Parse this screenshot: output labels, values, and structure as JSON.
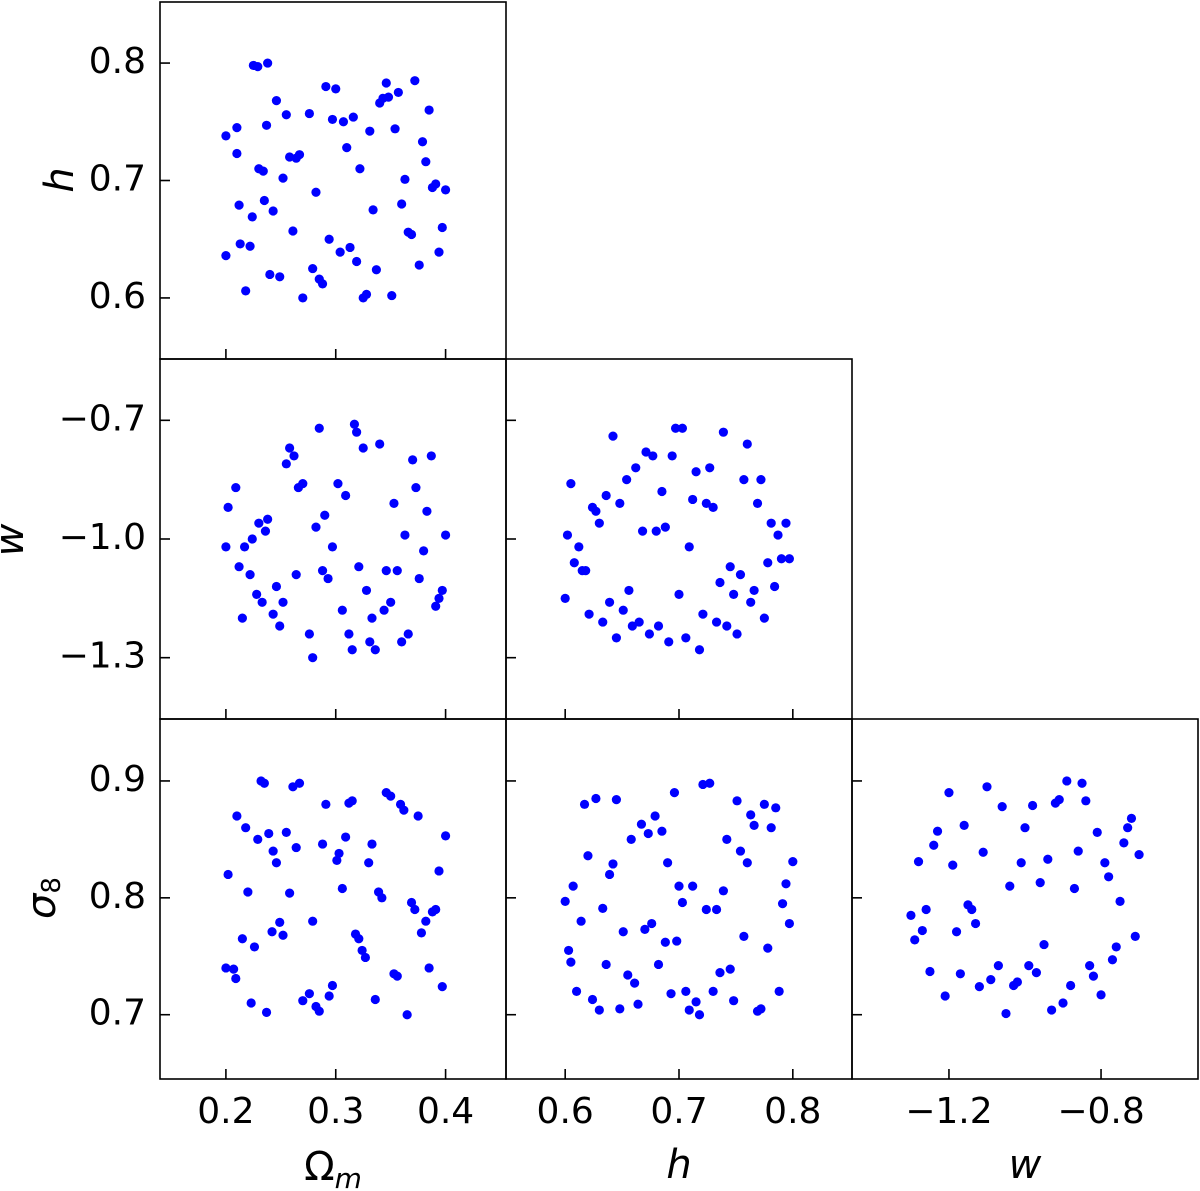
{
  "chart_data": [
    {
      "type": "scatter",
      "panel": "h-vs-omega_m",
      "ylabel": "h",
      "xlim": [
        0.14,
        0.455
      ],
      "ylim": [
        0.548,
        0.852
      ],
      "xticks": [
        0.2,
        0.3,
        0.4
      ],
      "yticks": [
        0.6,
        0.7,
        0.8
      ],
      "ytick_labels": [
        "0.6",
        "0.7",
        "0.8"
      ],
      "marker_color": "#0000ff",
      "x": [
        0.2,
        0.2,
        0.21,
        0.21,
        0.212,
        0.213,
        0.218,
        0.222,
        0.224,
        0.225,
        0.229,
        0.23,
        0.234,
        0.235,
        0.237,
        0.238,
        0.24,
        0.243,
        0.246,
        0.249,
        0.252,
        0.255,
        0.258,
        0.261,
        0.264,
        0.267,
        0.27,
        0.276,
        0.279,
        0.282,
        0.285,
        0.288,
        0.291,
        0.294,
        0.297,
        0.3,
        0.304,
        0.307,
        0.31,
        0.313,
        0.316,
        0.319,
        0.322,
        0.325,
        0.328,
        0.331,
        0.334,
        0.337,
        0.34,
        0.343,
        0.346,
        0.348,
        0.351,
        0.354,
        0.357,
        0.36,
        0.363,
        0.366,
        0.369,
        0.372,
        0.376,
        0.379,
        0.382,
        0.385,
        0.388,
        0.391,
        0.394,
        0.397,
        0.4
      ],
      "y": [
        0.738,
        0.636,
        0.745,
        0.723,
        0.679,
        0.646,
        0.606,
        0.644,
        0.669,
        0.798,
        0.797,
        0.71,
        0.708,
        0.683,
        0.747,
        0.8,
        0.62,
        0.674,
        0.768,
        0.618,
        0.702,
        0.756,
        0.72,
        0.657,
        0.719,
        0.722,
        0.6,
        0.757,
        0.625,
        0.69,
        0.616,
        0.612,
        0.78,
        0.65,
        0.752,
        0.778,
        0.639,
        0.75,
        0.728,
        0.643,
        0.754,
        0.631,
        0.71,
        0.6,
        0.603,
        0.742,
        0.675,
        0.624,
        0.766,
        0.77,
        0.783,
        0.771,
        0.602,
        0.744,
        0.775,
        0.68,
        0.701,
        0.656,
        0.654,
        0.785,
        0.628,
        0.733,
        0.716,
        0.76,
        0.694,
        0.697,
        0.639,
        0.66,
        0.692
      ]
    },
    {
      "type": "scatter",
      "panel": "w-vs-omega_m",
      "ylabel": "w",
      "xlim": [
        0.14,
        0.455
      ],
      "ylim": [
        -1.455,
        -0.545
      ],
      "xticks": [
        0.2,
        0.3,
        0.4
      ],
      "yticks": [
        -1.3,
        -1.0,
        -0.7
      ],
      "ytick_labels": [
        "−1.3",
        "−1.0",
        "−0.7"
      ],
      "marker_color": "#0000ff",
      "x": [
        0.2,
        0.202,
        0.209,
        0.212,
        0.215,
        0.217,
        0.222,
        0.224,
        0.228,
        0.23,
        0.233,
        0.236,
        0.238,
        0.243,
        0.246,
        0.249,
        0.252,
        0.255,
        0.258,
        0.262,
        0.264,
        0.266,
        0.27,
        0.276,
        0.279,
        0.282,
        0.285,
        0.288,
        0.29,
        0.293,
        0.297,
        0.302,
        0.306,
        0.309,
        0.312,
        0.315,
        0.317,
        0.319,
        0.321,
        0.325,
        0.328,
        0.331,
        0.333,
        0.336,
        0.34,
        0.344,
        0.346,
        0.35,
        0.353,
        0.356,
        0.36,
        0.363,
        0.366,
        0.37,
        0.373,
        0.376,
        0.38,
        0.383,
        0.387,
        0.391,
        0.394,
        0.397,
        0.4
      ],
      "y": [
        -1.02,
        -0.92,
        -0.87,
        -1.07,
        -1.2,
        -1.02,
        -1.09,
        -1.0,
        -1.14,
        -0.96,
        -1.16,
        -0.98,
        -0.95,
        -1.19,
        -1.12,
        -1.22,
        -1.16,
        -0.81,
        -0.77,
        -0.79,
        -1.09,
        -0.87,
        -0.86,
        -1.24,
        -1.3,
        -0.97,
        -0.72,
        -1.08,
        -0.94,
        -1.1,
        -1.02,
        -0.86,
        -1.18,
        -0.89,
        -1.24,
        -1.28,
        -0.71,
        -0.73,
        -1.07,
        -0.77,
        -1.13,
        -1.26,
        -1.2,
        -1.28,
        -0.76,
        -1.18,
        -1.08,
        -1.16,
        -0.91,
        -1.08,
        -1.26,
        -0.99,
        -1.24,
        -0.8,
        -0.87,
        -1.1,
        -1.03,
        -0.93,
        -0.79,
        -1.17,
        -1.15,
        -1.13,
        -0.99
      ]
    },
    {
      "type": "scatter",
      "panel": "w-vs-h",
      "xlim": [
        0.548,
        0.852
      ],
      "ylim": [
        -1.455,
        -0.545
      ],
      "xticks": [
        0.6,
        0.7,
        0.8
      ],
      "yticks": [
        -1.3,
        -1.0,
        -0.7
      ],
      "marker_color": "#0000ff",
      "x": [
        0.6,
        0.602,
        0.605,
        0.608,
        0.612,
        0.615,
        0.618,
        0.621,
        0.624,
        0.627,
        0.63,
        0.633,
        0.636,
        0.639,
        0.642,
        0.645,
        0.648,
        0.651,
        0.654,
        0.656,
        0.659,
        0.662,
        0.665,
        0.668,
        0.671,
        0.674,
        0.677,
        0.68,
        0.682,
        0.685,
        0.688,
        0.691,
        0.694,
        0.697,
        0.7,
        0.703,
        0.706,
        0.709,
        0.712,
        0.715,
        0.718,
        0.721,
        0.724,
        0.727,
        0.73,
        0.733,
        0.736,
        0.739,
        0.742,
        0.745,
        0.748,
        0.751,
        0.754,
        0.757,
        0.76,
        0.763,
        0.766,
        0.769,
        0.772,
        0.775,
        0.778,
        0.781,
        0.784,
        0.787,
        0.79,
        0.794,
        0.797
      ],
      "y": [
        -1.15,
        -0.99,
        -0.86,
        -1.06,
        -1.02,
        -1.08,
        -1.08,
        -1.19,
        -0.92,
        -0.93,
        -0.96,
        -1.21,
        -0.89,
        -1.16,
        -0.74,
        -1.25,
        -0.91,
        -1.18,
        -0.85,
        -1.13,
        -1.22,
        -0.82,
        -1.21,
        -0.98,
        -0.78,
        -1.24,
        -0.79,
        -0.98,
        -1.22,
        -0.88,
        -0.97,
        -1.26,
        -0.79,
        -0.72,
        -1.14,
        -0.72,
        -1.25,
        -1.02,
        -0.9,
        -0.83,
        -1.28,
        -1.19,
        -0.91,
        -0.82,
        -0.92,
        -1.21,
        -1.11,
        -0.73,
        -1.22,
        -1.07,
        -1.14,
        -1.24,
        -1.09,
        -0.85,
        -0.76,
        -1.16,
        -1.13,
        -0.91,
        -0.85,
        -1.2,
        -1.06,
        -0.96,
        -1.12,
        -0.99,
        -1.05,
        -0.96,
        -1.05
      ]
    },
    {
      "type": "scatter",
      "panel": "sigma8-vs-omega_m",
      "xlabel": "Ωm",
      "ylabel": "σ8",
      "xlim": [
        0.14,
        0.455
      ],
      "ylim": [
        0.645,
        0.953
      ],
      "xticks": [
        0.2,
        0.3,
        0.4
      ],
      "yticks": [
        0.7,
        0.8,
        0.9
      ],
      "xtick_labels": [
        "0.2",
        "0.3",
        "0.4"
      ],
      "ytick_labels": [
        "0.7",
        "0.8",
        "0.9"
      ],
      "marker_color": "#0000ff",
      "x": [
        0.2,
        0.202,
        0.207,
        0.209,
        0.21,
        0.215,
        0.218,
        0.22,
        0.223,
        0.226,
        0.229,
        0.232,
        0.235,
        0.237,
        0.239,
        0.242,
        0.243,
        0.246,
        0.249,
        0.252,
        0.255,
        0.258,
        0.261,
        0.264,
        0.267,
        0.27,
        0.276,
        0.279,
        0.282,
        0.285,
        0.288,
        0.291,
        0.294,
        0.297,
        0.301,
        0.303,
        0.306,
        0.309,
        0.312,
        0.315,
        0.318,
        0.321,
        0.324,
        0.327,
        0.33,
        0.333,
        0.336,
        0.339,
        0.342,
        0.346,
        0.35,
        0.353,
        0.356,
        0.359,
        0.362,
        0.365,
        0.369,
        0.372,
        0.375,
        0.378,
        0.382,
        0.385,
        0.388,
        0.391,
        0.394,
        0.397,
        0.4
      ],
      "y": [
        0.74,
        0.82,
        0.739,
        0.731,
        0.87,
        0.765,
        0.86,
        0.805,
        0.71,
        0.758,
        0.85,
        0.9,
        0.898,
        0.702,
        0.855,
        0.771,
        0.84,
        0.83,
        0.779,
        0.768,
        0.856,
        0.804,
        0.895,
        0.843,
        0.898,
        0.712,
        0.718,
        0.78,
        0.707,
        0.703,
        0.846,
        0.88,
        0.716,
        0.725,
        0.832,
        0.838,
        0.808,
        0.852,
        0.881,
        0.883,
        0.769,
        0.765,
        0.755,
        0.749,
        0.83,
        0.846,
        0.713,
        0.805,
        0.8,
        0.89,
        0.887,
        0.735,
        0.733,
        0.88,
        0.875,
        0.7,
        0.796,
        0.79,
        0.87,
        0.77,
        0.78,
        0.74,
        0.788,
        0.79,
        0.823,
        0.724,
        0.853
      ]
    },
    {
      "type": "scatter",
      "panel": "sigma8-vs-h",
      "xlabel": "h",
      "xlim": [
        0.548,
        0.852
      ],
      "ylim": [
        0.645,
        0.953
      ],
      "xticks": [
        0.6,
        0.7,
        0.8
      ],
      "yticks": [
        0.7,
        0.8,
        0.9
      ],
      "xtick_labels": [
        "0.6",
        "0.7",
        "0.8"
      ],
      "marker_color": "#0000ff",
      "x": [
        0.6,
        0.603,
        0.605,
        0.607,
        0.61,
        0.614,
        0.617,
        0.62,
        0.624,
        0.627,
        0.63,
        0.633,
        0.636,
        0.639,
        0.642,
        0.645,
        0.648,
        0.651,
        0.655,
        0.658,
        0.661,
        0.664,
        0.667,
        0.67,
        0.673,
        0.676,
        0.679,
        0.682,
        0.685,
        0.688,
        0.69,
        0.693,
        0.696,
        0.698,
        0.7,
        0.703,
        0.706,
        0.709,
        0.712,
        0.715,
        0.718,
        0.721,
        0.724,
        0.727,
        0.73,
        0.733,
        0.736,
        0.739,
        0.742,
        0.745,
        0.748,
        0.751,
        0.754,
        0.757,
        0.76,
        0.763,
        0.766,
        0.769,
        0.772,
        0.775,
        0.778,
        0.781,
        0.785,
        0.788,
        0.791,
        0.794,
        0.797,
        0.8
      ],
      "y": [
        0.797,
        0.755,
        0.745,
        0.81,
        0.72,
        0.78,
        0.88,
        0.836,
        0.713,
        0.885,
        0.704,
        0.791,
        0.743,
        0.82,
        0.829,
        0.884,
        0.705,
        0.771,
        0.734,
        0.85,
        0.727,
        0.709,
        0.863,
        0.773,
        0.855,
        0.778,
        0.87,
        0.743,
        0.857,
        0.762,
        0.83,
        0.718,
        0.89,
        0.763,
        0.81,
        0.796,
        0.72,
        0.704,
        0.81,
        0.711,
        0.7,
        0.897,
        0.79,
        0.898,
        0.72,
        0.79,
        0.736,
        0.806,
        0.85,
        0.739,
        0.712,
        0.883,
        0.84,
        0.767,
        0.83,
        0.871,
        0.862,
        0.703,
        0.705,
        0.88,
        0.757,
        0.86,
        0.877,
        0.72,
        0.795,
        0.812,
        0.778,
        0.831
      ]
    },
    {
      "type": "scatter",
      "panel": "sigma8-vs-w",
      "xlabel": "w",
      "xlim": [
        -1.455,
        -0.545
      ],
      "ylim": [
        0.645,
        0.953
      ],
      "xticks": [
        -1.2,
        -0.8
      ],
      "yticks": [
        0.7,
        0.8,
        0.9
      ],
      "xtick_labels": [
        "−1.2",
        "−0.8"
      ],
      "marker_color": "#0000ff",
      "x": [
        -1.3,
        -1.29,
        -1.28,
        -1.27,
        -1.26,
        -1.25,
        -1.24,
        -1.23,
        -1.21,
        -1.2,
        -1.19,
        -1.18,
        -1.17,
        -1.16,
        -1.15,
        -1.14,
        -1.13,
        -1.12,
        -1.11,
        -1.1,
        -1.09,
        -1.07,
        -1.06,
        -1.05,
        -1.04,
        -1.03,
        -1.02,
        -1.01,
        -1.0,
        -0.99,
        -0.98,
        -0.97,
        -0.96,
        -0.95,
        -0.94,
        -0.93,
        -0.92,
        -0.91,
        -0.9,
        -0.89,
        -0.88,
        -0.87,
        -0.86,
        -0.85,
        -0.84,
        -0.83,
        -0.82,
        -0.81,
        -0.8,
        -0.79,
        -0.78,
        -0.77,
        -0.76,
        -0.75,
        -0.74,
        -0.73,
        -0.72,
        -0.71,
        -0.7
      ],
      "y": [
        0.785,
        0.764,
        0.831,
        0.772,
        0.79,
        0.737,
        0.845,
        0.857,
        0.716,
        0.89,
        0.828,
        0.771,
        0.735,
        0.862,
        0.794,
        0.79,
        0.778,
        0.724,
        0.839,
        0.895,
        0.73,
        0.742,
        0.878,
        0.701,
        0.81,
        0.725,
        0.728,
        0.83,
        0.86,
        0.742,
        0.879,
        0.736,
        0.813,
        0.76,
        0.833,
        0.704,
        0.881,
        0.884,
        0.71,
        0.9,
        0.725,
        0.808,
        0.84,
        0.898,
        0.883,
        0.742,
        0.733,
        0.856,
        0.717,
        0.83,
        0.818,
        0.747,
        0.758,
        0.797,
        0.847,
        0.86,
        0.868,
        0.767,
        0.837
      ]
    }
  ]
}
